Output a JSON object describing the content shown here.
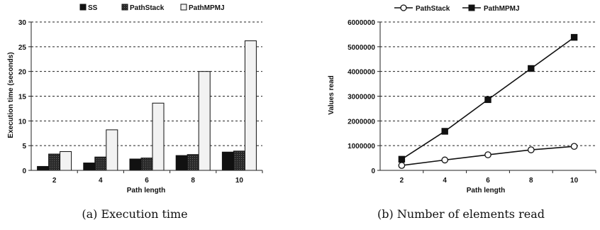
{
  "chart_data": [
    {
      "type": "bar",
      "caption": "(a) Execution time",
      "xlabel": "Path length",
      "ylabel": "Execution time (seconds)",
      "categories": [
        "2",
        "4",
        "6",
        "8",
        "10"
      ],
      "ylim": [
        0,
        30
      ],
      "yticks": [
        "0",
        "5",
        "10",
        "15",
        "20",
        "25",
        "30"
      ],
      "grid": true,
      "legend_position": "top",
      "series": [
        {
          "name": "SS",
          "values": [
            0.8,
            1.5,
            2.3,
            3.0,
            3.7
          ],
          "color": "#111111"
        },
        {
          "name": "PathStack",
          "values": [
            3.3,
            2.7,
            2.5,
            3.2,
            3.9
          ],
          "color": "#333333"
        },
        {
          "name": "PathMPMJ",
          "values": [
            3.8,
            8.2,
            13.6,
            20.0,
            26.2
          ],
          "color": "#f2f2f2"
        }
      ]
    },
    {
      "type": "line",
      "caption": "(b) Number of elements read",
      "xlabel": "Path length",
      "ylabel": "Values read",
      "x": [
        "2",
        "4",
        "6",
        "8",
        "10"
      ],
      "ylim": [
        0,
        6000000
      ],
      "yticks": [
        "0",
        "1000000",
        "2000000",
        "3000000",
        "4000000",
        "5000000",
        "6000000"
      ],
      "grid": true,
      "legend_position": "top",
      "series": [
        {
          "name": "PathStack",
          "values": [
            200000,
            420000,
            630000,
            830000,
            970000
          ],
          "marker": "open-circle"
        },
        {
          "name": "PathMPMJ",
          "values": [
            450000,
            1580000,
            2860000,
            4120000,
            5380000
          ],
          "marker": "filled-square"
        }
      ]
    }
  ]
}
